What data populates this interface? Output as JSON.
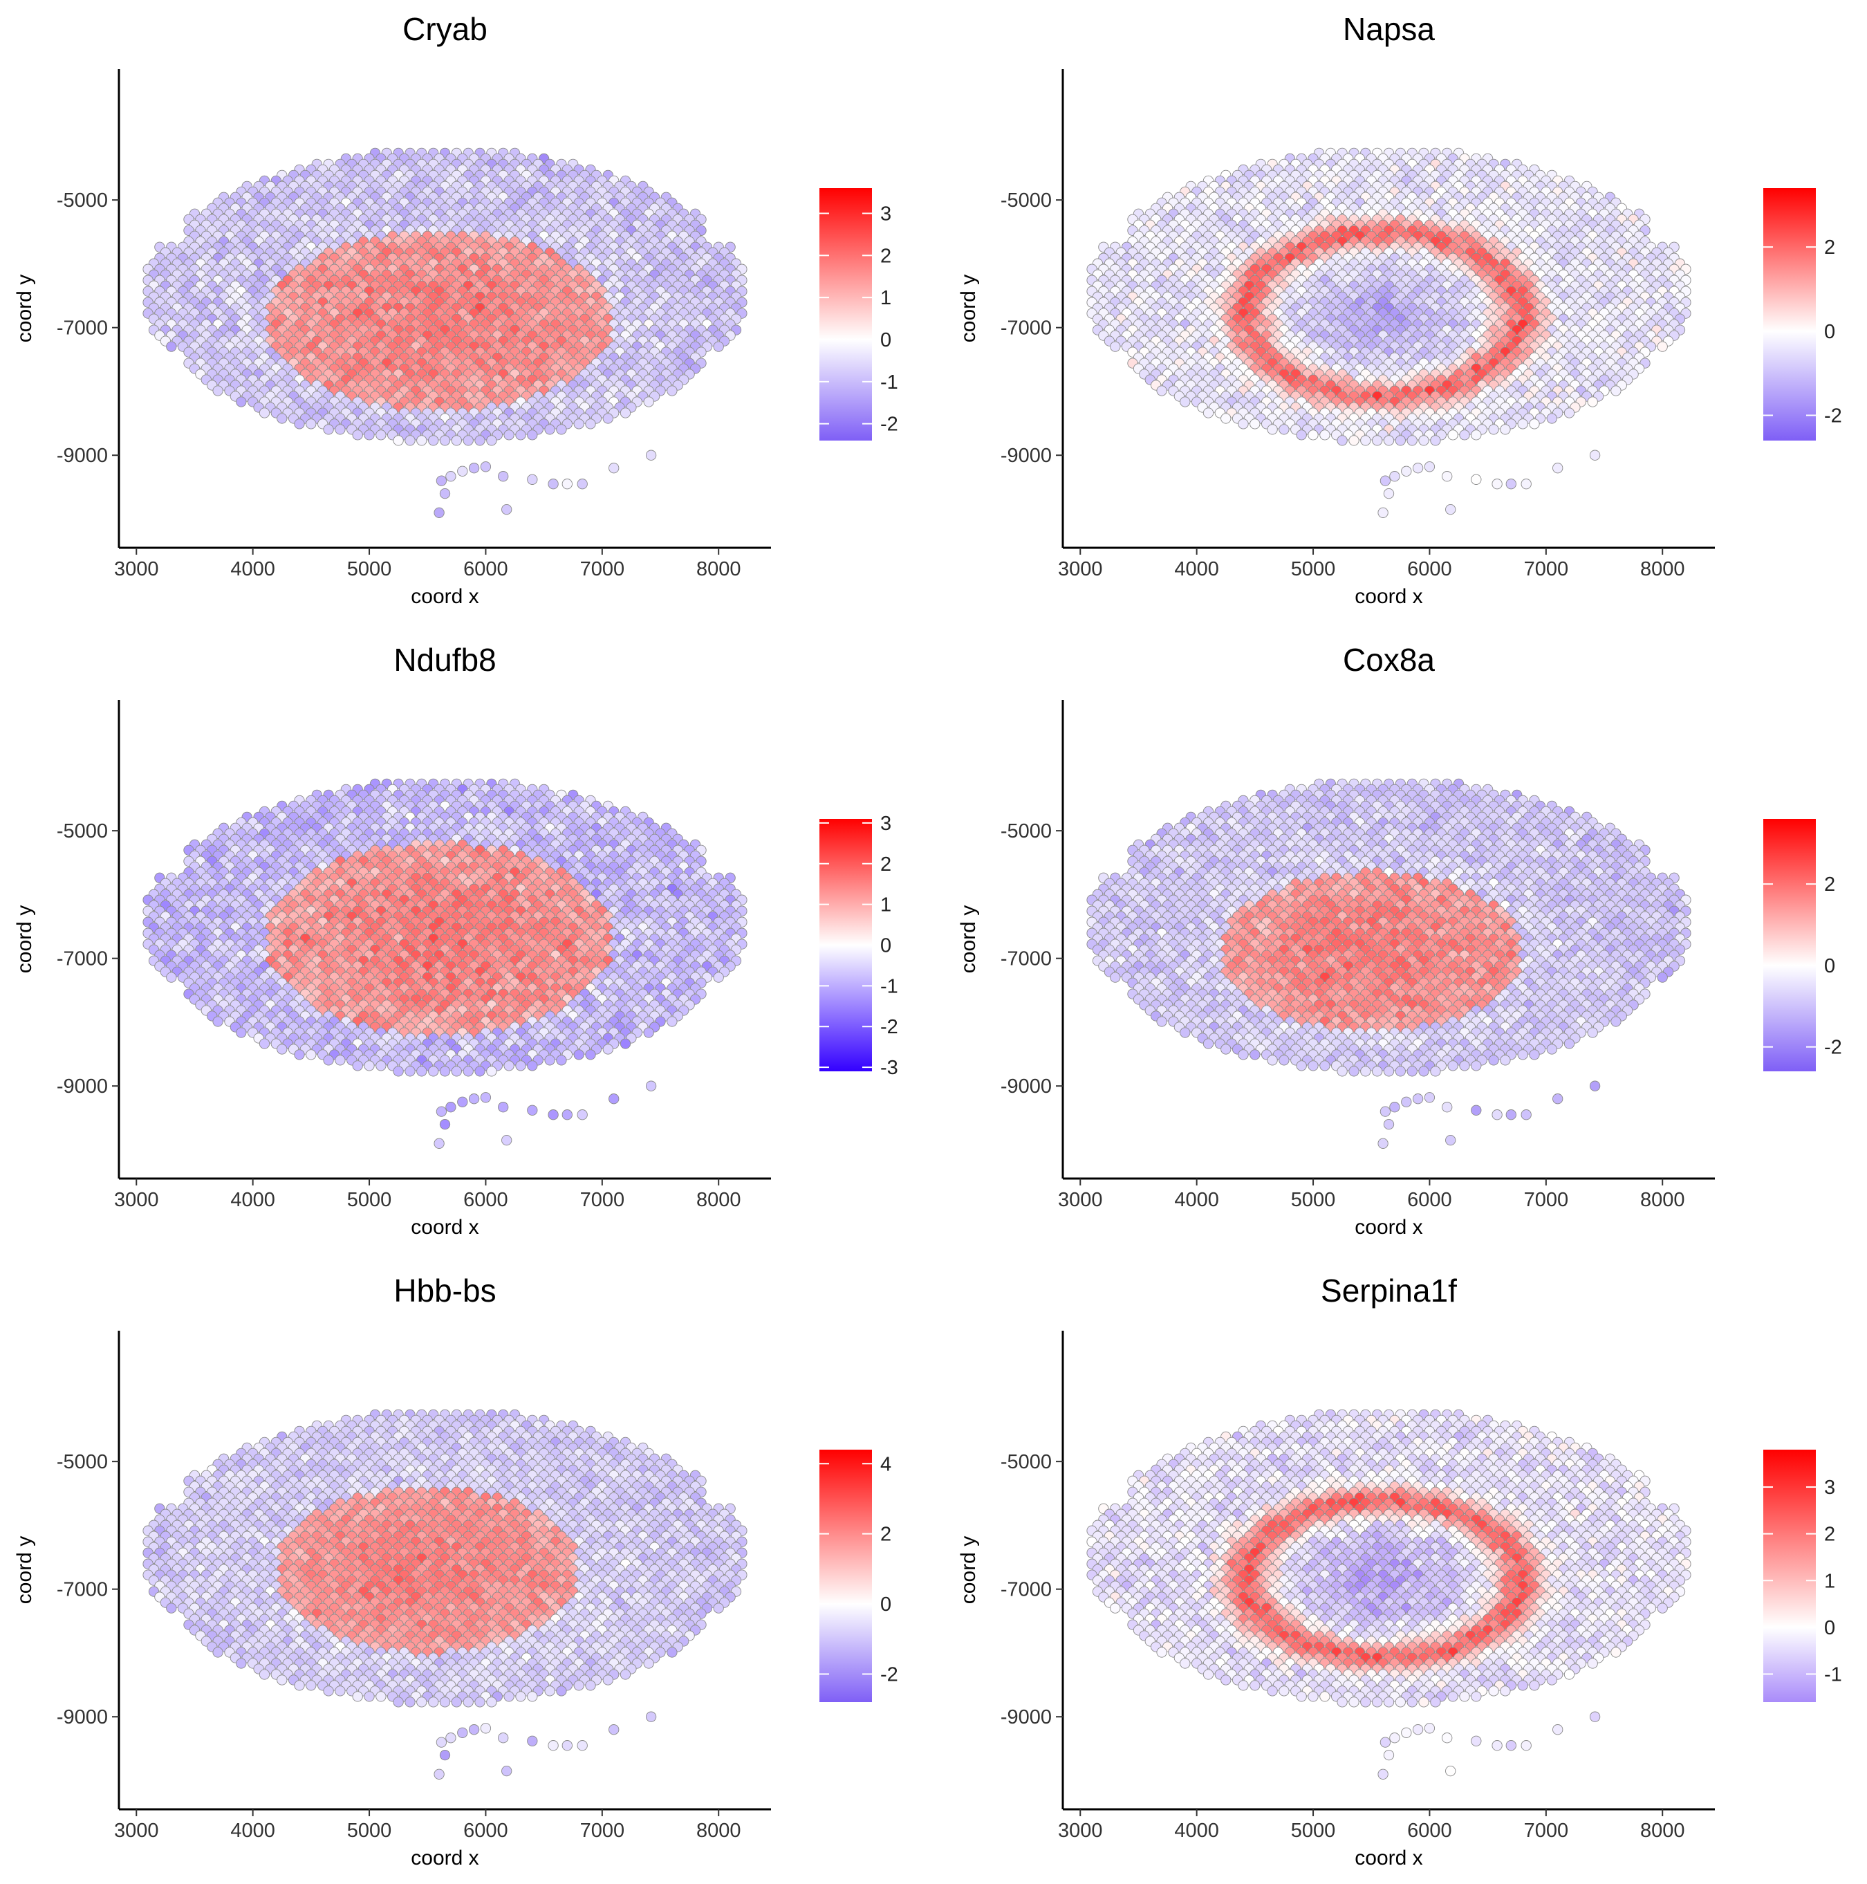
{
  "figure": {
    "xlabel": "coord x",
    "ylabel": "coord y"
  },
  "chart_data": [
    {
      "type": "scatter",
      "title": "Cryab",
      "xlabel": "coord x",
      "ylabel": "coord y",
      "xlim": [
        2850,
        8450
      ],
      "ylim": [
        -10450,
        -2950
      ],
      "xticks": [
        3000,
        4000,
        5000,
        6000,
        7000,
        8000
      ],
      "yticks": [
        -5000,
        -7000,
        -9000
      ],
      "tick_labels_x": [
        "3000",
        "4000",
        "5000",
        "6000",
        "7000",
        "8000"
      ],
      "tick_labels_y": [
        "-5000",
        "-7000",
        "-9000"
      ],
      "grid": false,
      "legend": "right",
      "color_scale": {
        "low": "#7f5ff6",
        "mid": "#ffffff",
        "high": "#ff0000",
        "min": -2.4,
        "max": 3.6,
        "ticks": [
          3,
          2,
          1,
          0,
          -1,
          -2
        ],
        "tick_labels": [
          "3",
          "2",
          "1",
          "0",
          "-1",
          "-2"
        ]
      },
      "pattern": "center",
      "high_center": [
        5600,
        -6900
      ],
      "high_radius": [
        1500,
        1400
      ],
      "seed": 11
    },
    {
      "type": "scatter",
      "title": "Napsa",
      "xlabel": "coord x",
      "ylabel": "coord y",
      "xlim": [
        2850,
        8450
      ],
      "ylim": [
        -10450,
        -2950
      ],
      "xticks": [
        3000,
        4000,
        5000,
        6000,
        7000,
        8000
      ],
      "yticks": [
        -5000,
        -7000,
        -9000
      ],
      "tick_labels_x": [
        "3000",
        "4000",
        "5000",
        "6000",
        "7000",
        "8000"
      ],
      "tick_labels_y": [
        "-5000",
        "-7000",
        "-9000"
      ],
      "grid": false,
      "legend": "right",
      "color_scale": {
        "low": "#7f5ff6",
        "mid": "#ffffff",
        "high": "#ff0000",
        "min": -2.6,
        "max": 3.4,
        "ticks": [
          2,
          0,
          -2
        ],
        "tick_labels": [
          "2",
          "0",
          "-2"
        ]
      },
      "pattern": "ring",
      "high_center": [
        5600,
        -6800
      ],
      "high_radius": [
        1250,
        1350
      ],
      "seed": 23
    },
    {
      "type": "scatter",
      "title": "Ndufb8",
      "xlabel": "coord x",
      "ylabel": "coord y",
      "xlim": [
        2850,
        8450
      ],
      "ylim": [
        -10450,
        -2950
      ],
      "xticks": [
        3000,
        4000,
        5000,
        6000,
        7000,
        8000
      ],
      "yticks": [
        -5000,
        -7000,
        -9000
      ],
      "tick_labels_x": [
        "3000",
        "4000",
        "5000",
        "6000",
        "7000",
        "8000"
      ],
      "tick_labels_y": [
        "-5000",
        "-7000",
        "-9000"
      ],
      "grid": false,
      "legend": "right",
      "color_scale": {
        "low": "#3300ff",
        "mid": "#ffffff",
        "high": "#ff0000",
        "min": -3.1,
        "max": 3.1,
        "ticks": [
          3,
          2,
          1,
          0,
          -1,
          -2,
          -3
        ],
        "tick_labels": [
          "3",
          "2",
          "1",
          "0",
          "-1",
          "-2",
          "-3"
        ]
      },
      "pattern": "center",
      "high_center": [
        5600,
        -6700
      ],
      "high_radius": [
        1500,
        1500
      ],
      "seed": 37
    },
    {
      "type": "scatter",
      "title": "Cox8a",
      "xlabel": "coord x",
      "ylabel": "coord y",
      "xlim": [
        2850,
        8450
      ],
      "ylim": [
        -10450,
        -2950
      ],
      "xticks": [
        3000,
        4000,
        5000,
        6000,
        7000,
        8000
      ],
      "yticks": [
        -5000,
        -7000,
        -9000
      ],
      "tick_labels_x": [
        "3000",
        "4000",
        "5000",
        "6000",
        "7000",
        "8000"
      ],
      "tick_labels_y": [
        "-5000",
        "-7000",
        "-9000"
      ],
      "grid": false,
      "legend": "right",
      "color_scale": {
        "low": "#7f5ff6",
        "mid": "#ffffff",
        "high": "#ff0000",
        "min": -2.6,
        "max": 3.6,
        "ticks": [
          2,
          0,
          -2
        ],
        "tick_labels": [
          "2",
          "0",
          "-2"
        ]
      },
      "pattern": "center",
      "high_center": [
        5500,
        -6900
      ],
      "high_radius": [
        1300,
        1250
      ],
      "seed": 41
    },
    {
      "type": "scatter",
      "title": "Hbb-bs",
      "xlabel": "coord x",
      "ylabel": "coord y",
      "xlim": [
        2850,
        8450
      ],
      "ylim": [
        -10450,
        -2950
      ],
      "xticks": [
        3000,
        4000,
        5000,
        6000,
        7000,
        8000
      ],
      "yticks": [
        -5000,
        -7000,
        -9000
      ],
      "tick_labels_x": [
        "3000",
        "4000",
        "5000",
        "6000",
        "7000",
        "8000"
      ],
      "tick_labels_y": [
        "-5000",
        "-7000",
        "-9000"
      ],
      "grid": false,
      "legend": "right",
      "color_scale": {
        "low": "#7f5ff6",
        "mid": "#ffffff",
        "high": "#ff0000",
        "min": -2.8,
        "max": 4.4,
        "ticks": [
          4,
          2,
          0,
          -2
        ],
        "tick_labels": [
          "4",
          "2",
          "0",
          "-2"
        ]
      },
      "pattern": "center",
      "high_center": [
        5500,
        -6700
      ],
      "high_radius": [
        1300,
        1300
      ],
      "seed": 53
    },
    {
      "type": "scatter",
      "title": "Serpina1f",
      "xlabel": "coord x",
      "ylabel": "coord y",
      "xlim": [
        2850,
        8450
      ],
      "ylim": [
        -10450,
        -2950
      ],
      "xticks": [
        3000,
        4000,
        5000,
        6000,
        7000,
        8000
      ],
      "yticks": [
        -5000,
        -7000,
        -9000
      ],
      "tick_labels_x": [
        "3000",
        "4000",
        "5000",
        "6000",
        "7000",
        "8000"
      ],
      "tick_labels_y": [
        "-5000",
        "-7000",
        "-9000"
      ],
      "grid": false,
      "legend": "right",
      "color_scale": {
        "low": "#a98bfa",
        "mid": "#ffffff",
        "high": "#ff0000",
        "min": -1.6,
        "max": 3.8,
        "ticks": [
          3,
          2,
          1,
          0,
          -1
        ],
        "tick_labels": [
          "3",
          "2",
          "1",
          "0",
          "-1"
        ]
      },
      "pattern": "ring",
      "high_center": [
        5600,
        -6850
      ],
      "high_radius": [
        1250,
        1300
      ],
      "seed": 67
    }
  ]
}
